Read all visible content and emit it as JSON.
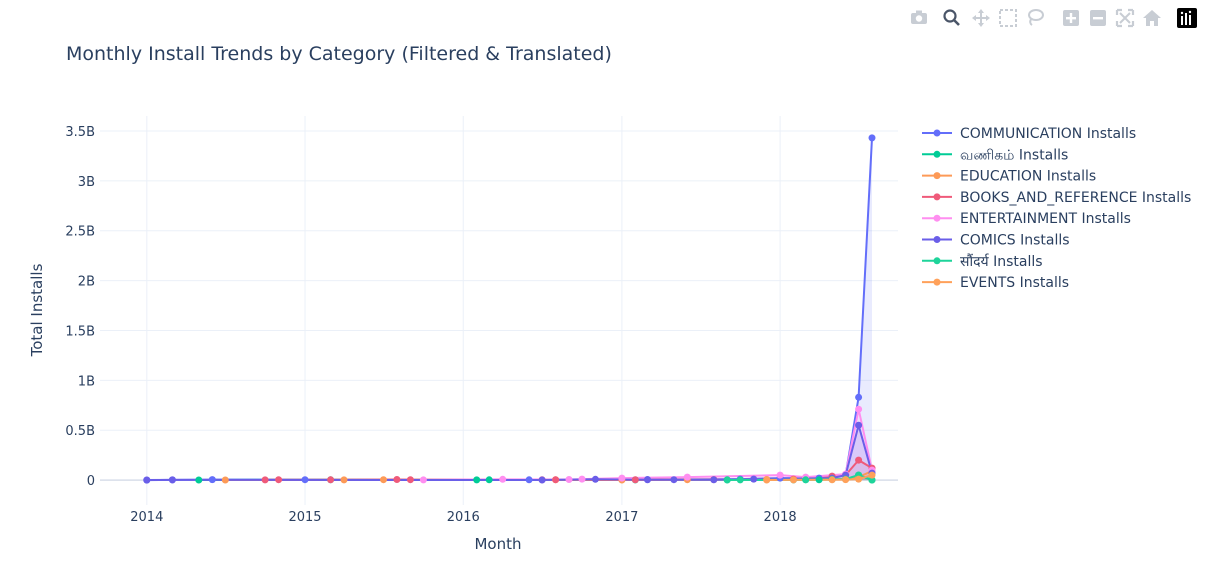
{
  "chart_data": {
    "type": "line",
    "title": "Monthly Install Trends by Category (Filtered & Translated)",
    "xlabel": "Month",
    "ylabel": "Total Installs",
    "x_ticks": [
      "2014",
      "2015",
      "2016",
      "2017",
      "2018"
    ],
    "y_ticks": [
      "0",
      "0.5B",
      "1B",
      "1.5B",
      "2B",
      "2.5B",
      "3B",
      "3.5B"
    ],
    "xlim": [
      "2013-09-15",
      "2018-09-30"
    ],
    "ylim": [
      -0.25,
      3.65
    ],
    "y_unit": "billions",
    "grid": true,
    "legend_position": "right",
    "series": [
      {
        "name": "COMMUNICATION Installs",
        "color": "#636efa",
        "points": [
          [
            "2014-01-01",
            0.0
          ],
          [
            "2014-03-01",
            0.002
          ],
          [
            "2014-06-01",
            0.005
          ],
          [
            "2015-01-01",
            0.004
          ],
          [
            "2016-06-01",
            0.003
          ],
          [
            "2017-03-01",
            0.006
          ],
          [
            "2017-10-01",
            0.01
          ],
          [
            "2018-01-01",
            0.02
          ],
          [
            "2018-04-01",
            0.02
          ],
          [
            "2018-06-01",
            0.05
          ],
          [
            "2018-07-01",
            0.83
          ],
          [
            "2018-08-01",
            3.43
          ]
        ]
      },
      {
        "name": "வணிகம் Installs",
        "color": "#00cc96",
        "points": [
          [
            "2014-05-01",
            0.001
          ],
          [
            "2015-03-01",
            0.003
          ],
          [
            "2016-02-01",
            0.002
          ],
          [
            "2016-03-01",
            0.003
          ],
          [
            "2017-02-01",
            0.002
          ],
          [
            "2017-09-01",
            0.003
          ],
          [
            "2018-02-01",
            0.002
          ],
          [
            "2018-03-01",
            0.003
          ],
          [
            "2018-04-01",
            0.003
          ],
          [
            "2018-05-01",
            0.006
          ],
          [
            "2018-06-01",
            0.008
          ],
          [
            "2018-07-01",
            0.05
          ],
          [
            "2018-08-01",
            0.001
          ]
        ]
      },
      {
        "name": "EDUCATION Installs",
        "color": "#fd9a57",
        "points": [
          [
            "2014-07-01",
            0.001
          ],
          [
            "2015-04-01",
            0.002
          ],
          [
            "2015-07-01",
            0.004
          ],
          [
            "2016-08-01",
            0.003
          ],
          [
            "2017-01-01",
            0.001
          ],
          [
            "2017-06-01",
            0.004
          ],
          [
            "2017-12-01",
            0.006
          ],
          [
            "2018-05-01",
            0.008
          ],
          [
            "2018-06-01",
            0.01
          ],
          [
            "2018-07-01",
            0.03
          ],
          [
            "2018-08-01",
            0.09
          ]
        ]
      },
      {
        "name": "BOOKS_AND_REFERENCE Installs",
        "color": "#ef5a7a",
        "points": [
          [
            "2014-10-01",
            0.002
          ],
          [
            "2014-11-01",
            0.004
          ],
          [
            "2015-03-01",
            0.003
          ],
          [
            "2015-08-01",
            0.006
          ],
          [
            "2015-09-01",
            0.004
          ],
          [
            "2016-07-01",
            0.003
          ],
          [
            "2016-08-01",
            0.004
          ],
          [
            "2017-02-01",
            0.003
          ],
          [
            "2017-08-01",
            0.005
          ],
          [
            "2018-02-01",
            0.01
          ],
          [
            "2018-05-01",
            0.04
          ],
          [
            "2018-06-01",
            0.05
          ],
          [
            "2018-07-01",
            0.2
          ],
          [
            "2018-08-01",
            0.12
          ]
        ]
      },
      {
        "name": "ENTERTAINMENT Installs",
        "color": "#ff8ef0",
        "points": [
          [
            "2015-10-01",
            0.002
          ],
          [
            "2016-04-01",
            0.008
          ],
          [
            "2016-09-01",
            0.006
          ],
          [
            "2016-10-01",
            0.01
          ],
          [
            "2017-01-01",
            0.02
          ],
          [
            "2017-06-01",
            0.03
          ],
          [
            "2018-01-01",
            0.05
          ],
          [
            "2018-03-01",
            0.03
          ],
          [
            "2018-06-01",
            0.06
          ],
          [
            "2018-07-01",
            0.71
          ],
          [
            "2018-08-01",
            0.1
          ]
        ]
      },
      {
        "name": "COMICS Installs",
        "color": "#6a5ee8",
        "points": [
          [
            "2014-01-01",
            0.001
          ],
          [
            "2014-03-01",
            0.002
          ],
          [
            "2016-07-01",
            0.001
          ],
          [
            "2016-11-01",
            0.008
          ],
          [
            "2017-03-01",
            0.003
          ],
          [
            "2017-05-01",
            0.004
          ],
          [
            "2017-08-01",
            0.003
          ],
          [
            "2017-11-01",
            0.01
          ],
          [
            "2018-05-01",
            0.02
          ],
          [
            "2018-06-01",
            0.05
          ],
          [
            "2018-07-01",
            0.55
          ],
          [
            "2018-08-01",
            0.07
          ]
        ]
      },
      {
        "name": "सौंदर्य Installs",
        "color": "#1ed49a",
        "points": [
          [
            "2017-09-01",
            0.001
          ],
          [
            "2017-10-01",
            0.002
          ],
          [
            "2018-03-01",
            0.003
          ],
          [
            "2018-05-01",
            0.008
          ],
          [
            "2018-06-01",
            0.01
          ],
          [
            "2018-07-01",
            0.05
          ],
          [
            "2018-08-01",
            0.001
          ]
        ]
      },
      {
        "name": "EVENTS Installs",
        "color": "#ffa15a",
        "points": [
          [
            "2017-12-01",
            0.001
          ],
          [
            "2018-02-01",
            0.002
          ],
          [
            "2018-05-01",
            0.003
          ],
          [
            "2018-06-01",
            0.005
          ],
          [
            "2018-07-01",
            0.01
          ],
          [
            "2018-08-01",
            0.05
          ]
        ]
      }
    ]
  },
  "modebar": [
    {
      "name": "camera-icon"
    },
    {
      "name": "zoom-icon"
    },
    {
      "name": "pan-icon"
    },
    {
      "name": "box-select-icon"
    },
    {
      "name": "lasso-icon"
    },
    {
      "name": "zoom-in-icon"
    },
    {
      "name": "zoom-out-icon"
    },
    {
      "name": "autoscale-icon"
    },
    {
      "name": "home-icon"
    },
    {
      "name": "plotly-logo-icon"
    }
  ]
}
